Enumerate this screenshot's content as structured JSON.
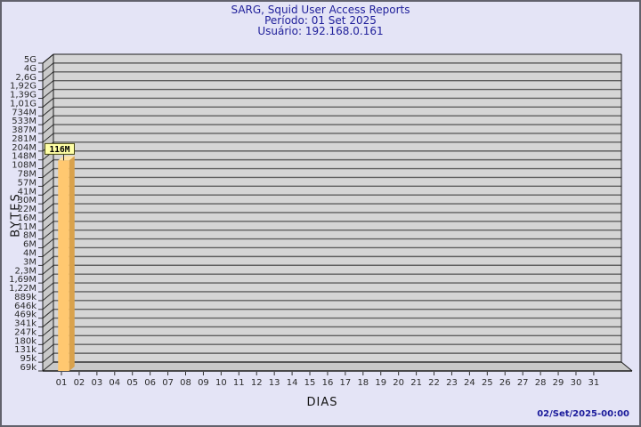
{
  "header": {
    "title": "SARG, Squid User Access Reports",
    "period_label": "Período: 01 Set 2025",
    "user_label": "Usuário: 192.168.0.161"
  },
  "footer": {
    "generated_at": "02/Set/2025-00:00"
  },
  "chart_data": {
    "type": "bar",
    "title": "SARG, Squid User Access Reports",
    "subtitle_period": "Período: 01 Set 2025",
    "subtitle_user": "Usuário: 192.168.0.161",
    "xlabel": "DIAS",
    "ylabel": "BYTES",
    "y_scale": "log",
    "grid": true,
    "legend": false,
    "y_tick_labels": [
      "5G",
      "4G",
      "2,6G",
      "1,92G",
      "1,39G",
      "1,01G",
      "734M",
      "533M",
      "387M",
      "281M",
      "204M",
      "148M",
      "108M",
      "78M",
      "57M",
      "41M",
      "30M",
      "22M",
      "16M",
      "11M",
      "8M",
      "6M",
      "4M",
      "3M",
      "2,3M",
      "1,69M",
      "1,22M",
      "889k",
      "646k",
      "469k",
      "341k",
      "247k",
      "180k",
      "131k",
      "95k",
      "69k"
    ],
    "categories": [
      "01",
      "02",
      "03",
      "04",
      "05",
      "06",
      "07",
      "08",
      "09",
      "10",
      "11",
      "12",
      "13",
      "14",
      "15",
      "16",
      "17",
      "18",
      "19",
      "20",
      "21",
      "22",
      "23",
      "24",
      "25",
      "26",
      "27",
      "28",
      "29",
      "30",
      "31"
    ],
    "values": [
      116000000,
      0,
      0,
      0,
      0,
      0,
      0,
      0,
      0,
      0,
      0,
      0,
      0,
      0,
      0,
      0,
      0,
      0,
      0,
      0,
      0,
      0,
      0,
      0,
      0,
      0,
      0,
      0,
      0,
      0,
      0
    ],
    "bars": [
      {
        "category": "01",
        "value": 116000000,
        "label": "116M"
      }
    ],
    "colors": {
      "bar_front": "#FFC870",
      "bar_side": "#D9A24C",
      "bar_top": "#FFE2A2",
      "bar_label_bg": "#FFFFA6",
      "bar_label_border": "#4A4A10",
      "plot_bg": "#D5D5D5",
      "wall_bg": "#C9C9C9",
      "grid": "#5F5F5F",
      "frame": "#1C1C1C",
      "axis_text": "#2B2B2B",
      "title": "#21219B",
      "timestamp": "#1B1B9B",
      "page_bg": "#E4E4F6",
      "page_border": "#62626C"
    }
  }
}
